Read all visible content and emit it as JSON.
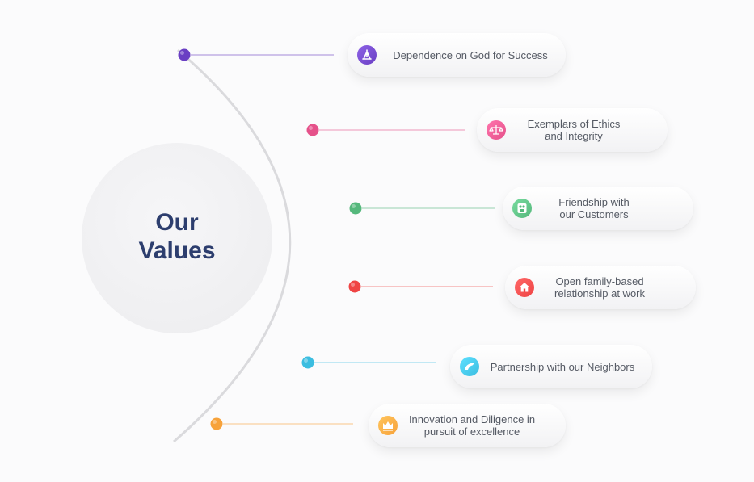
{
  "center": {
    "line1": "Our",
    "line2": "Values"
  },
  "values": [
    {
      "text": "Dependence on God for Success",
      "icon": "praying-hands-icon",
      "color": "#6a3fc3"
    },
    {
      "text": "Exemplars of Ethics\nand Integrity",
      "icon": "scales-icon",
      "color": "#e5518a"
    },
    {
      "text": "Friendship with\nour Customers",
      "icon": "friends-icon",
      "color": "#55b87c"
    },
    {
      "text": "Open family-based\nrelationship at work",
      "icon": "home-icon",
      "color": "#ef4444"
    },
    {
      "text": "Partnership with our Neighbors",
      "icon": "dolphin-icon",
      "color": "#3bbde0"
    },
    {
      "text": "Innovation and Diligence in\npursuit of excellence",
      "icon": "crown-icon",
      "color": "#f7a23a"
    }
  ]
}
